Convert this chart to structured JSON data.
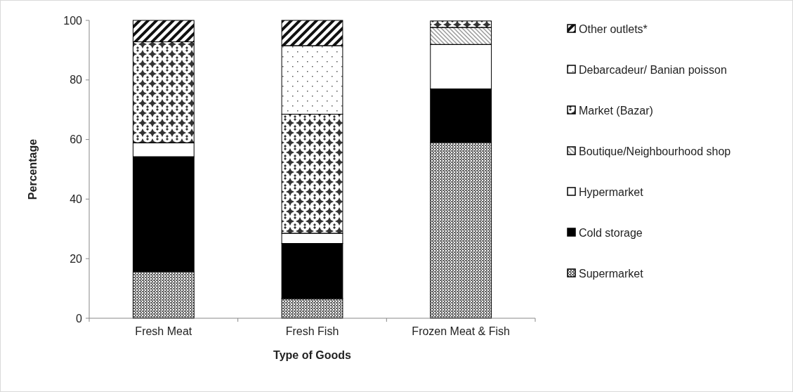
{
  "chart_data": {
    "type": "bar",
    "stacked": true,
    "xlabel": "Type of Goods",
    "ylabel": "Percentage",
    "categories": [
      "Fresh Meat",
      "Fresh Fish",
      "Frozen Meat & Fish"
    ],
    "series": [
      {
        "name": "Supermarket",
        "color": "#666666",
        "values": [
          15.6,
          6.6,
          59.0
        ]
      },
      {
        "name": "Cold storage",
        "color": "#000000",
        "values": [
          38.6,
          18.5,
          18.0
        ]
      },
      {
        "name": "Hypermarket",
        "color": "#ffffff",
        "values": [
          4.7,
          3.4,
          14.9
        ]
      },
      {
        "name": "Boutique/Neighbourhood shop",
        "color": "#999999",
        "values": [
          0,
          0,
          5.7
        ]
      },
      {
        "name": "Market (Bazar)",
        "color": "#333333",
        "values": [
          33.9,
          40.0,
          2.2
        ]
      },
      {
        "name": "Debarcadeur/ Banian poisson",
        "color": "#eeeeee",
        "values": [
          0,
          23.0,
          0
        ]
      },
      {
        "name": "Other outlets*",
        "color": "#111111",
        "values": [
          7.2,
          8.5,
          0
        ]
      }
    ],
    "ylim": [
      0,
      100
    ],
    "yticks": [
      0,
      20,
      40,
      60,
      80,
      100
    ],
    "legend": "right"
  }
}
